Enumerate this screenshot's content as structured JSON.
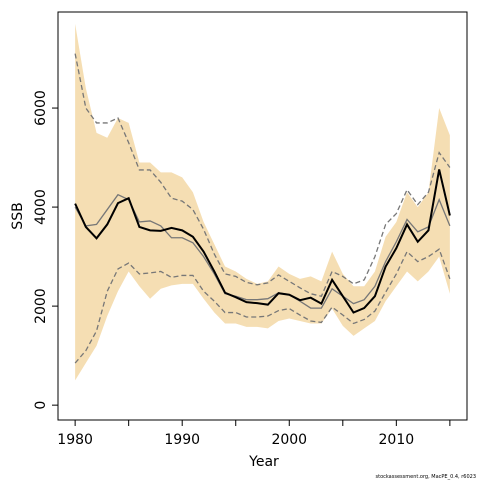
{
  "chart_data": {
    "type": "line",
    "xlabel": "Year",
    "ylabel": "SSB",
    "footnote": "stockassessment.org, MacPE_0.4, r6023",
    "x": [
      1980,
      1981,
      1982,
      1983,
      1984,
      1985,
      1986,
      1987,
      1988,
      1989,
      1990,
      1991,
      1992,
      1993,
      1994,
      1995,
      1996,
      1997,
      1998,
      1999,
      2000,
      2001,
      2002,
      2003,
      2004,
      2005,
      2006,
      2007,
      2008,
      2009,
      2010,
      2011,
      2012,
      2013,
      2014,
      2015
    ],
    "band": {
      "color": "#f5deb3",
      "upper": [
        7700,
        6400,
        5500,
        5400,
        5800,
        5700,
        4900,
        4900,
        4700,
        4700,
        4600,
        4300,
        3700,
        3250,
        2800,
        2700,
        2550,
        2450,
        2500,
        2800,
        2650,
        2550,
        2600,
        2500,
        3100,
        2650,
        2400,
        2400,
        2700,
        3400,
        3700,
        4300,
        4000,
        4300,
        6000,
        5450
      ],
      "lower": [
        500,
        850,
        1200,
        1800,
        2300,
        2700,
        2400,
        2150,
        2350,
        2420,
        2450,
        2450,
        2150,
        1870,
        1650,
        1650,
        1580,
        1580,
        1550,
        1700,
        1750,
        1700,
        1650,
        1650,
        1950,
        1600,
        1400,
        1550,
        1700,
        2100,
        2400,
        2700,
        2500,
        2700,
        3000,
        2250
      ]
    },
    "series": [
      {
        "color": "#777777",
        "dash": true,
        "values": [
          7100,
          6000,
          5700,
          5700,
          5800,
          5300,
          4750,
          4750,
          4500,
          4180,
          4120,
          3950,
          3550,
          3050,
          2650,
          2600,
          2480,
          2430,
          2470,
          2630,
          2500,
          2370,
          2250,
          2200,
          2700,
          2600,
          2450,
          2530,
          3000,
          3650,
          3870,
          4350,
          4050,
          4300,
          5100,
          4800
        ]
      },
      {
        "color": "#777777",
        "dash": true,
        "values": [
          850,
          1100,
          1500,
          2300,
          2750,
          2870,
          2650,
          2670,
          2700,
          2580,
          2620,
          2620,
          2300,
          2100,
          1870,
          1870,
          1780,
          1780,
          1800,
          1910,
          1950,
          1820,
          1700,
          1670,
          1980,
          1820,
          1650,
          1730,
          1900,
          2280,
          2650,
          3100,
          2900,
          3000,
          3150,
          2550
        ]
      },
      {
        "color": "#777777",
        "dash": false,
        "values": [
          4000,
          3620,
          3650,
          3950,
          4250,
          4150,
          3700,
          3720,
          3620,
          3380,
          3380,
          3280,
          3000,
          2650,
          2250,
          2200,
          2130,
          2130,
          2150,
          2270,
          2230,
          2100,
          1960,
          1960,
          2350,
          2200,
          2050,
          2130,
          2400,
          2900,
          3300,
          3750,
          3500,
          3600,
          4150,
          3620
        ]
      },
      {
        "color": "#000000",
        "dash": false,
        "width": 2,
        "values": [
          4070,
          3600,
          3370,
          3650,
          4080,
          4180,
          3600,
          3530,
          3520,
          3580,
          3530,
          3400,
          3100,
          2700,
          2270,
          2180,
          2080,
          2060,
          2030,
          2260,
          2230,
          2120,
          2170,
          2050,
          2530,
          2200,
          1870,
          1960,
          2200,
          2800,
          3170,
          3650,
          3300,
          3530,
          4760,
          3830
        ]
      }
    ],
    "xlim": [
      1978.4,
      2016.6
    ],
    "ylim": [
      -300,
      7940
    ],
    "xticks": [
      1980,
      1990,
      2000,
      2010
    ],
    "xticks_minor": [
      1985,
      1995,
      2005,
      2015
    ],
    "yticks": [
      0,
      2000,
      4000,
      6000
    ]
  }
}
